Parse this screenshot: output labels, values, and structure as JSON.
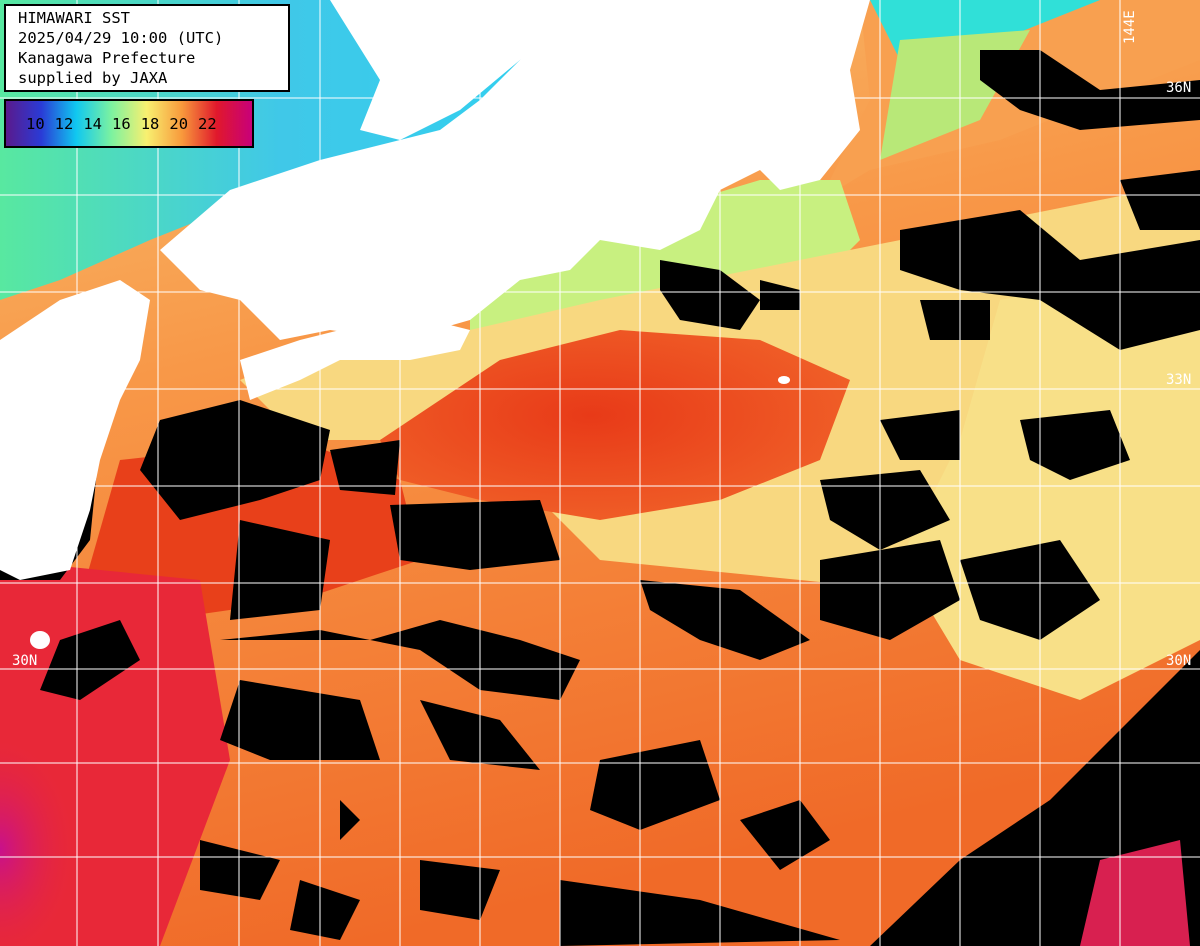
{
  "header": {
    "line1": "HIMAWARI SST",
    "line2": "2025/04/29 10:00 (UTC)",
    "line3": "Kanagawa Prefecture",
    "line4": "supplied by JAXA"
  },
  "legend": {
    "labels": [
      "10",
      "12",
      "14",
      "16",
      "18",
      "20",
      "22"
    ],
    "colors": [
      "#5a1a8c",
      "#2a3bd6",
      "#10c8f0",
      "#7cf2a0",
      "#f8f070",
      "#f89a3c",
      "#e0182c",
      "#c8007a"
    ]
  },
  "grid_labels": {
    "lon_144e": "144E",
    "lat_36n": "36N",
    "lat_33n": "33N",
    "lat_30n_left": "30N",
    "lat_30n_right": "30N"
  },
  "colors": {
    "land": "#ffffff",
    "cloud": "#000000",
    "cold_water": "#6ef0a8",
    "cool_water": "#b8f080",
    "mild_water": "#f8d87a",
    "warm_water": "#f89848",
    "hot_water": "#f05a20",
    "kuroshio": "#e83418",
    "very_warm": "#d81a50",
    "grid": "#ffffff"
  }
}
